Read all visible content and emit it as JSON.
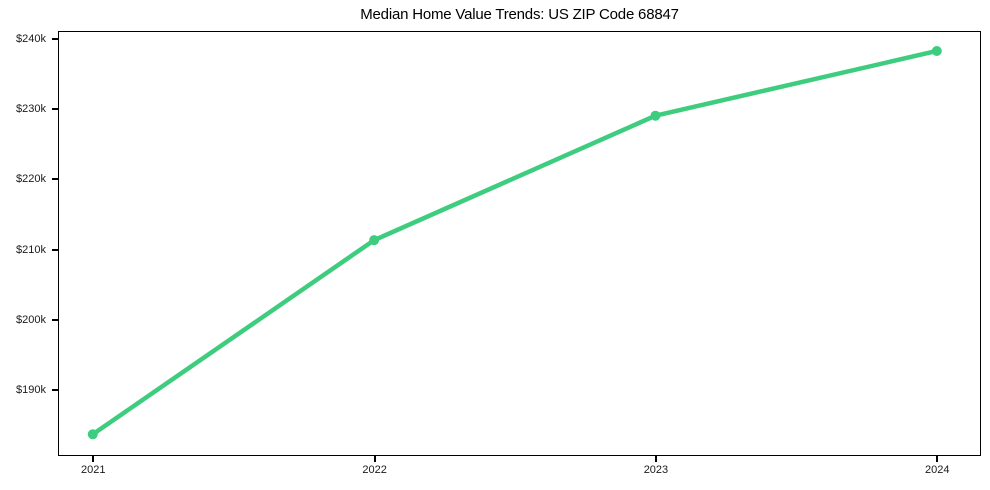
{
  "figure": {
    "title": "Median Home Value Trends: US ZIP Code 68847"
  },
  "chart_data": {
    "type": "line",
    "title": "Median Home Value Trends: US ZIP Code 68847",
    "x": [
      2021,
      2022,
      2023,
      2024
    ],
    "series": [
      {
        "name": "Median Home Value",
        "values": [
          183700,
          211300,
          229000,
          238200
        ]
      }
    ],
    "xlabel": "",
    "ylabel": "",
    "xlim": [
      2020.88,
      2024.15
    ],
    "ylim": [
      180900,
      240900
    ],
    "xticks": [
      {
        "value": 2021,
        "label": "2021"
      },
      {
        "value": 2022,
        "label": "2022"
      },
      {
        "value": 2023,
        "label": "2023"
      },
      {
        "value": 2024,
        "label": "2024"
      }
    ],
    "yticks": [
      {
        "value": 240000,
        "label": "$240k"
      },
      {
        "value": 230000,
        "label": "$230k"
      },
      {
        "value": 220000,
        "label": "$220k"
      },
      {
        "value": 210000,
        "label": "$210k"
      },
      {
        "value": 200000,
        "label": "$200k"
      },
      {
        "value": 190000,
        "label": "$190k"
      }
    ],
    "grid": false,
    "legend_visible": false,
    "line_color": "#3ecc7e",
    "marker": "circle",
    "marker_radius": 5,
    "line_width": 4.5,
    "axis_color": "#000000",
    "tick_label_color": "#1a1a1a",
    "background_color": "#ffffff"
  }
}
